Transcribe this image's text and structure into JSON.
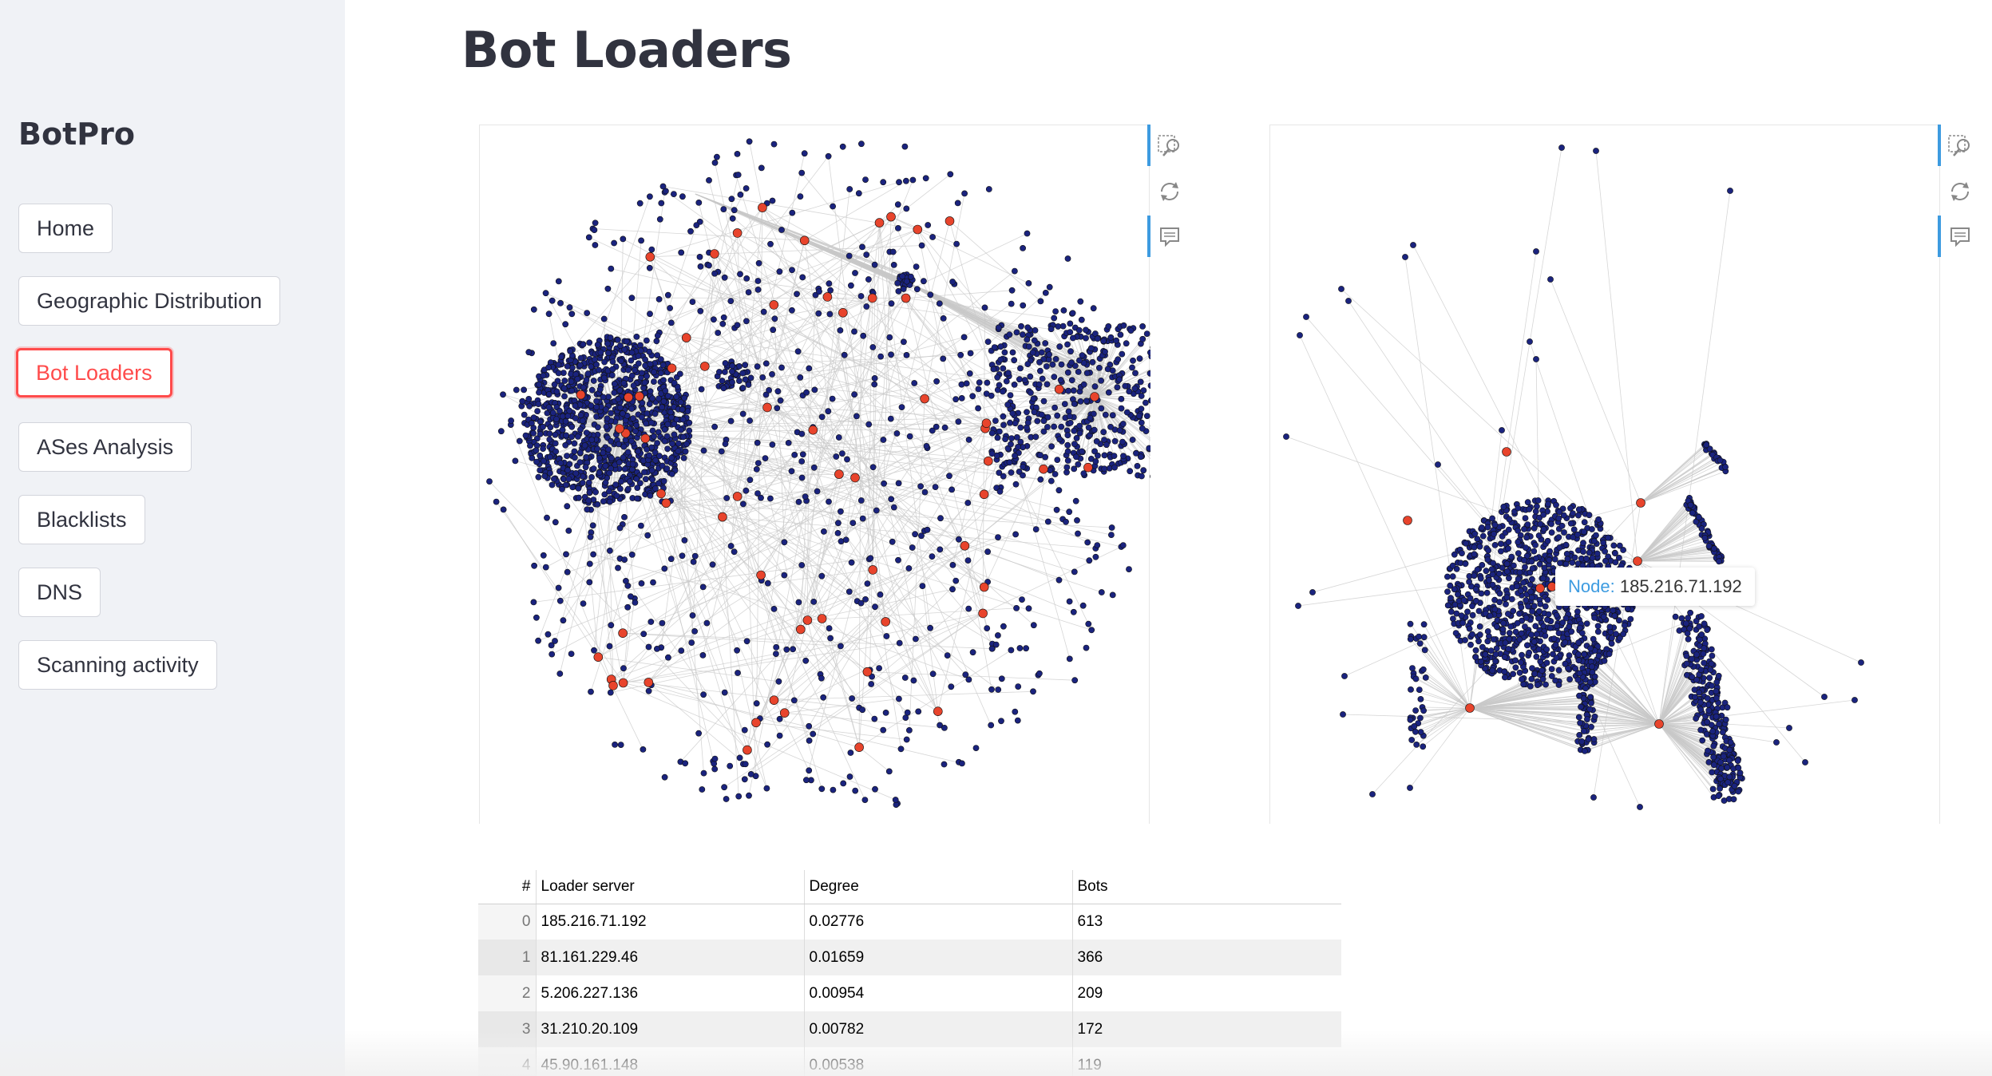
{
  "app": {
    "brand": "BotPro"
  },
  "sidebar": {
    "items": [
      {
        "label": "Home",
        "active": false
      },
      {
        "label": "Geographic Distribution",
        "active": false
      },
      {
        "label": "Bot Loaders",
        "active": true
      },
      {
        "label": "ASes Analysis",
        "active": false
      },
      {
        "label": "Blacklists",
        "active": false
      },
      {
        "label": "DNS",
        "active": false
      },
      {
        "label": "Scanning activity",
        "active": false
      }
    ]
  },
  "main": {
    "title": "Bot Loaders"
  },
  "graphs": [
    {
      "toolbar": [
        "zoom-icon",
        "restore-icon",
        "data-view-icon"
      ]
    },
    {
      "toolbar": [
        "zoom-icon",
        "restore-icon",
        "data-view-icon"
      ],
      "tooltip": {
        "key": "Node:",
        "value": "185.216.71.192"
      }
    }
  ],
  "colors": {
    "bot_node": "#1a237e",
    "loader_node": "#e8442c",
    "edge": "#c8c8c8",
    "accent": "#ff4b4b",
    "tool_active": "#3d9be0"
  },
  "table": {
    "columns": [
      "#",
      "Loader server",
      "Degree",
      "Bots"
    ],
    "rows": [
      {
        "idx": "0",
        "server": "185.216.71.192",
        "degree": "0.02776",
        "bots": "613"
      },
      {
        "idx": "1",
        "server": "81.161.229.46",
        "degree": "0.01659",
        "bots": "366"
      },
      {
        "idx": "2",
        "server": "5.206.227.136",
        "degree": "0.00954",
        "bots": "209"
      },
      {
        "idx": "3",
        "server": "31.210.20.109",
        "degree": "0.00782",
        "bots": "172"
      },
      {
        "idx": "4",
        "server": "45.90.161.148",
        "degree": "0.00538",
        "bots": "119"
      }
    ]
  }
}
